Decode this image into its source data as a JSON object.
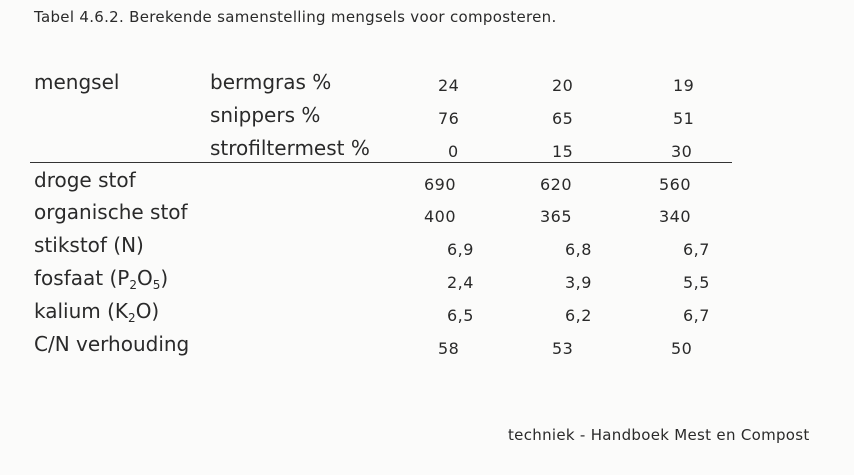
{
  "caption": "Tabel 4.6.2. Berekende samenstelling mengsels voor composteren.",
  "header": {
    "group_label": "mengsel",
    "rows": [
      {
        "label": "bermgras %",
        "values": [
          "24",
          "20",
          "19"
        ]
      },
      {
        "label": "snippers %",
        "values": [
          "76",
          "65",
          "51"
        ]
      },
      {
        "label": "strofiltermest %",
        "values": [
          "0",
          "15",
          "30"
        ]
      }
    ]
  },
  "body": {
    "rows": [
      {
        "label": "droge stof",
        "values": [
          "690",
          "620",
          "560"
        ]
      },
      {
        "label": "organische stof",
        "values": [
          "400",
          "365",
          "340"
        ]
      },
      {
        "label": "stikstof (N)",
        "values": [
          "6,9",
          "6,8",
          "6,7"
        ]
      },
      {
        "label_pre": "fosfaat (P",
        "label_sub1": "2",
        "label_mid": "O",
        "label_sub2": "5",
        "label_post": ")",
        "values": [
          "2,4",
          "3,9",
          "5,5"
        ]
      },
      {
        "label_pre": "kalium (K",
        "label_sub1": "2",
        "label_mid": "O)",
        "values": [
          "6,5",
          "6,2",
          "6,7"
        ]
      },
      {
        "label": "C/N verhouding",
        "values": [
          "58",
          "53",
          "50"
        ]
      }
    ]
  },
  "footer": "techniek - Handboek Mest en Compost"
}
